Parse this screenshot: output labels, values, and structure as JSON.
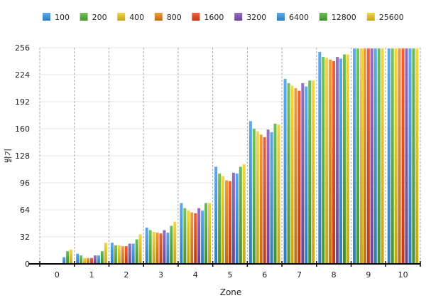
{
  "chart_data": {
    "type": "bar",
    "xlabel": "Zone",
    "ylabel": "밝기",
    "ylim": [
      0,
      256
    ],
    "yticks": [
      0,
      32,
      64,
      96,
      128,
      160,
      192,
      224,
      256
    ],
    "grid": true,
    "legend_position": "top",
    "categories": [
      "0",
      "1",
      "2",
      "3",
      "4",
      "5",
      "6",
      "7",
      "8",
      "9",
      "10"
    ],
    "series": [
      {
        "name": "100",
        "color": "#3d9be9",
        "values": [
          0,
          12,
          25,
          43,
          72,
          115,
          169,
          219,
          251,
          255,
          255
        ]
      },
      {
        "name": "200",
        "color": "#5bb83e",
        "values": [
          0,
          10,
          22,
          40,
          66,
          107,
          160,
          214,
          245,
          255,
          255
        ]
      },
      {
        "name": "400",
        "color": "#f2cf1f",
        "values": [
          0,
          7,
          22,
          38,
          63,
          104,
          157,
          211,
          244,
          255,
          255
        ]
      },
      {
        "name": "800",
        "color": "#ee8a1a",
        "values": [
          0,
          7,
          21,
          37,
          61,
          99,
          153,
          208,
          242,
          255,
          255
        ]
      },
      {
        "name": "1600",
        "color": "#f0461a",
        "values": [
          0,
          7,
          21,
          36,
          60,
          98,
          150,
          205,
          240,
          255,
          255
        ]
      },
      {
        "name": "3200",
        "color": "#8457b5",
        "values": [
          0,
          10,
          24,
          40,
          66,
          108,
          159,
          214,
          245,
          255,
          255
        ]
      },
      {
        "name": "6400",
        "color": "#3d9be9",
        "values": [
          8,
          10,
          24,
          37,
          63,
          107,
          156,
          210,
          243,
          255,
          255
        ]
      },
      {
        "name": "12800",
        "color": "#4fb23a",
        "values": [
          15,
          15,
          29,
          45,
          72,
          115,
          166,
          217,
          248,
          255,
          255
        ]
      },
      {
        "name": "25600",
        "color": "#f2cf1f",
        "values": [
          17,
          25,
          35,
          50,
          72,
          118,
          165,
          217,
          248,
          255,
          255
        ]
      }
    ]
  }
}
